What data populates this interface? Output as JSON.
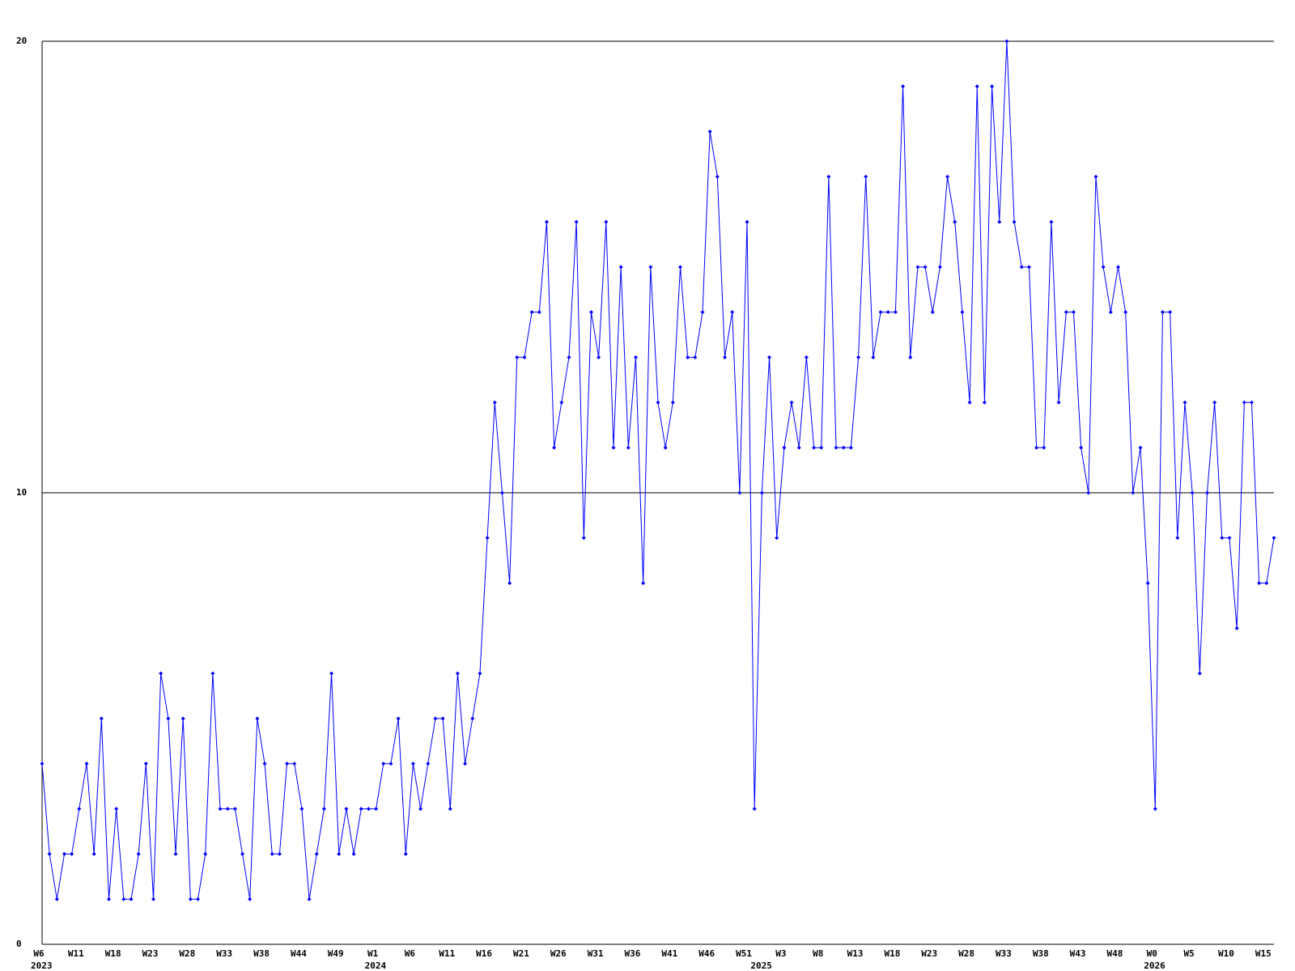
{
  "chart_data": {
    "type": "line",
    "ylim": [
      0,
      20
    ],
    "yticks": [
      0,
      10,
      20
    ],
    "grid": true,
    "categories": [
      "W6",
      null,
      null,
      null,
      null,
      "W11",
      null,
      null,
      null,
      null,
      "W18",
      null,
      null,
      null,
      null,
      "W23",
      null,
      null,
      null,
      null,
      "W28",
      null,
      null,
      null,
      null,
      "W33",
      null,
      null,
      null,
      null,
      "W38",
      null,
      null,
      null,
      null,
      "W44",
      null,
      null,
      null,
      null,
      "W49",
      null,
      null,
      null,
      null,
      "W1",
      null,
      null,
      null,
      null,
      "W6",
      null,
      null,
      null,
      null,
      "W11",
      null,
      null,
      null,
      null,
      "W16",
      null,
      null,
      null,
      null,
      "W21",
      null,
      null,
      null,
      null,
      "W26",
      null,
      null,
      null,
      null,
      "W31",
      null,
      null,
      null,
      null,
      "W36",
      null,
      null,
      null,
      null,
      "W41",
      null,
      null,
      null,
      null,
      "W46",
      null,
      null,
      null,
      null,
      "W51",
      null,
      null,
      null,
      null,
      "W3",
      null,
      null,
      null,
      null,
      "W8",
      null,
      null,
      null,
      null,
      "W13",
      null,
      null,
      null,
      null,
      "W18",
      null,
      null,
      null,
      null,
      "W23",
      null,
      null,
      null,
      null,
      "W28",
      null,
      null,
      null,
      null,
      "W33",
      null,
      null,
      null,
      null,
      "W38",
      null,
      null,
      null,
      null,
      "W43",
      null,
      null,
      null,
      null,
      "W48",
      null,
      null,
      null,
      null,
      "W0",
      null,
      null,
      null,
      null,
      "W5",
      null,
      null,
      null,
      null,
      "W10",
      null,
      null,
      null,
      null,
      "W15",
      null
    ],
    "category_years": [
      "2023",
      null,
      null,
      null,
      null,
      null,
      null,
      null,
      null,
      null,
      null,
      null,
      null,
      null,
      null,
      null,
      null,
      null,
      null,
      null,
      null,
      null,
      null,
      null,
      null,
      null,
      null,
      null,
      null,
      null,
      null,
      null,
      null,
      null,
      null,
      null,
      null,
      null,
      null,
      null,
      null,
      null,
      null,
      null,
      null,
      "2024",
      null,
      null,
      null,
      null,
      null,
      null,
      null,
      null,
      null,
      null,
      null,
      null,
      null,
      null,
      null,
      null,
      null,
      null,
      null,
      null,
      null,
      null,
      null,
      null,
      null,
      null,
      null,
      null,
      null,
      null,
      null,
      null,
      null,
      null,
      null,
      null,
      null,
      null,
      null,
      null,
      null,
      null,
      null,
      null,
      null,
      null,
      null,
      null,
      null,
      null,
      null,
      "2025",
      null,
      null,
      null,
      null,
      null,
      null,
      null,
      null,
      null,
      null,
      null,
      null,
      null,
      null,
      null,
      null,
      null,
      null,
      null,
      null,
      null,
      null,
      null,
      null,
      null,
      null,
      null,
      null,
      null,
      null,
      null,
      null,
      null,
      null,
      null,
      null,
      null,
      null,
      null,
      null,
      null,
      null,
      null,
      null,
      null,
      null,
      null,
      null,
      null,
      null,
      null,
      null,
      "2026",
      null,
      null,
      null,
      null,
      null,
      null,
      null,
      null,
      null,
      null,
      null,
      null,
      null,
      null,
      null,
      null
    ],
    "series": [
      {
        "color": "#0000ff",
        "values": [
          4,
          2,
          1,
          2,
          2,
          3,
          4,
          2,
          5,
          1,
          3,
          1,
          1,
          2,
          4,
          1,
          6,
          5,
          2,
          5,
          1,
          1,
          2,
          6,
          3,
          3,
          3,
          2,
          1,
          5,
          4,
          2,
          2,
          4,
          4,
          3,
          1,
          2,
          3,
          6,
          2,
          3,
          2,
          3,
          3,
          3,
          4,
          4,
          5,
          2,
          4,
          3,
          4,
          5,
          5,
          3,
          6,
          4,
          5,
          6,
          9,
          12,
          10,
          8,
          13,
          13,
          14,
          14,
          16,
          11,
          12,
          13,
          16,
          9,
          14,
          13,
          16,
          11,
          15,
          11,
          13,
          8,
          15,
          12,
          11,
          12,
          15,
          13,
          13,
          14,
          18,
          17,
          13,
          14,
          10,
          16,
          3,
          10,
          13,
          9,
          11,
          12,
          11,
          13,
          11,
          11,
          17,
          11,
          11,
          11,
          13,
          17,
          13,
          14,
          14,
          14,
          19,
          13,
          15,
          15,
          14,
          15,
          17,
          16,
          14,
          12,
          19,
          12,
          19,
          16,
          20,
          16,
          15,
          15,
          11,
          11,
          16,
          12,
          14,
          14,
          11,
          10,
          17,
          15,
          14,
          15,
          14,
          10,
          11,
          8,
          3,
          14,
          14,
          9,
          12,
          10,
          6,
          10,
          12,
          9,
          9,
          7,
          12,
          12,
          8,
          8,
          9
        ]
      }
    ]
  }
}
